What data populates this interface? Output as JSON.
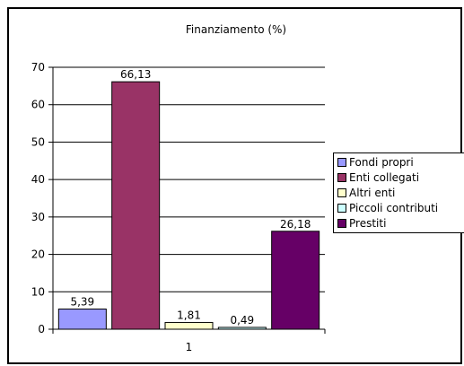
{
  "chart_data": {
    "type": "bar",
    "title": "Finanziamento (%)",
    "categories": [
      "1"
    ],
    "series": [
      {
        "name": "Fondi propri",
        "values": [
          5.39
        ],
        "label": "5,39",
        "color": "#9999FF"
      },
      {
        "name": "Enti collegati",
        "values": [
          66.13
        ],
        "label": "66,13",
        "color": "#993366"
      },
      {
        "name": "Altri enti",
        "values": [
          1.81
        ],
        "label": "1,81",
        "color": "#FFFFCC"
      },
      {
        "name": "Piccoli contributi",
        "values": [
          0.49
        ],
        "label": "0,49",
        "color": "#CCFFFF"
      },
      {
        "name": "Prestiti",
        "values": [
          26.18
        ],
        "label": "26,18",
        "color": "#660066"
      }
    ],
    "ylim": [
      0,
      70
    ],
    "yticks": [
      "0",
      "10",
      "20",
      "30",
      "40",
      "50",
      "60",
      "70"
    ],
    "grid": true,
    "legend_position": "right"
  }
}
